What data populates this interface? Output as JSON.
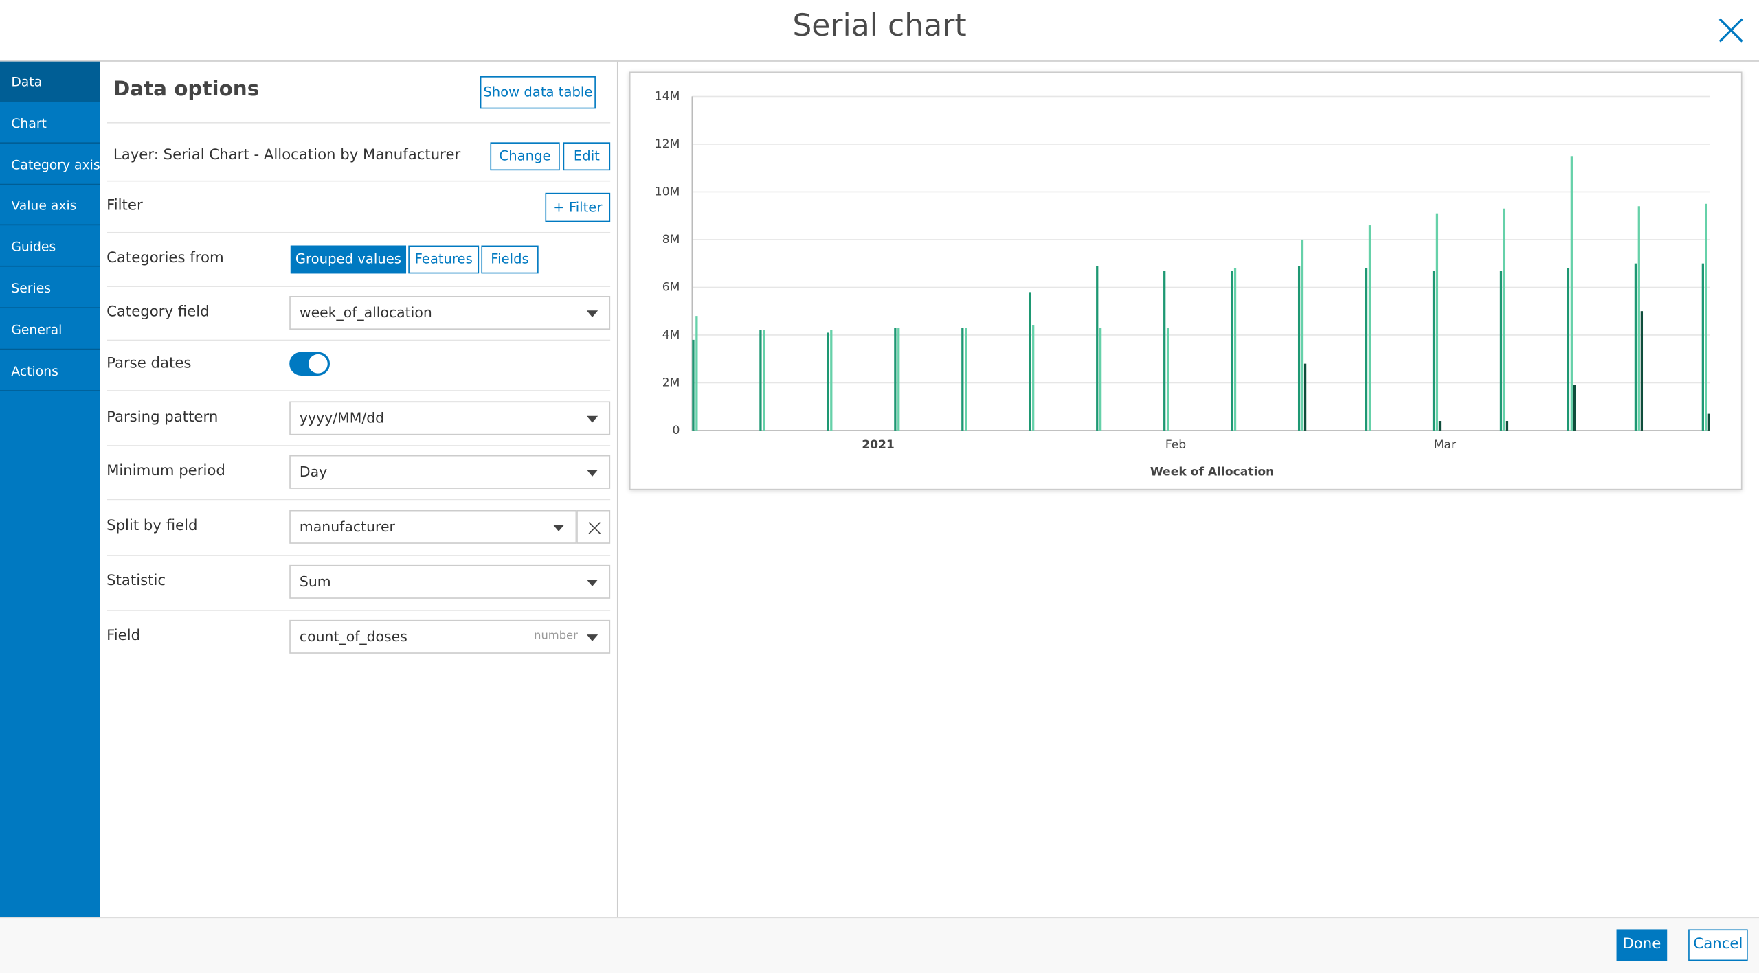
{
  "header": {
    "title": "Serial chart"
  },
  "nav": [
    "Data",
    "Chart",
    "Category axis",
    "Value axis",
    "Guides",
    "Series",
    "General",
    "Actions"
  ],
  "panel": {
    "title": "Data options",
    "show_data_table": "Show data table",
    "layer": "Layer: Serial Chart - Allocation by Manufacturer",
    "change": "Change",
    "edit": "Edit",
    "filter_label": "Filter",
    "filter_button": "+ Filter",
    "categories_from_label": "Categories from",
    "categories_from_options": [
      "Grouped values",
      "Features",
      "Fields"
    ],
    "category_field_label": "Category field",
    "category_field_value": "week_of_allocation",
    "parse_dates_label": "Parse dates",
    "parse_dates": true,
    "parsing_pattern_label": "Parsing pattern",
    "parsing_pattern_value": "yyyy/MM/dd",
    "minimum_period_label": "Minimum period",
    "minimum_period_value": "Day",
    "split_by_label": "Split by field",
    "split_by_value": "manufacturer",
    "statistic_label": "Statistic",
    "statistic_value": "Sum",
    "field_label": "Field",
    "field_value": "count_of_doses",
    "field_type": "number"
  },
  "chart_data": {
    "type": "bar",
    "x_label": "Week of Allocation",
    "categories": [
      null,
      null,
      null,
      null,
      null,
      null,
      null,
      null,
      null,
      null,
      null,
      null,
      null,
      null,
      null,
      null
    ],
    "x_tick_labels": [
      "2021",
      "Feb",
      "Mar"
    ],
    "series": [
      {
        "color": "#1e9873",
        "values": [
          3800000,
          4200000,
          4100000,
          4300000,
          4300000,
          5800000,
          6900000,
          6700000,
          6700000,
          6900000,
          6800000,
          6700000,
          6700000,
          6800000,
          7000000,
          7000000
        ]
      },
      {
        "color": "#66d1a9",
        "values": [
          4800000,
          4200000,
          4200000,
          4300000,
          4300000,
          4400000,
          4300000,
          4300000,
          6800000,
          8000000,
          8600000,
          9100000,
          9300000,
          11500000,
          9400000,
          9500000
        ]
      },
      {
        "color": "#0f4d3b",
        "values": [
          null,
          null,
          null,
          null,
          null,
          null,
          null,
          null,
          null,
          2800000,
          null,
          400000,
          400000,
          1900000,
          5000000,
          700000
        ]
      }
    ],
    "ylim": [
      0,
      14000000
    ],
    "yticks": [
      0,
      {
        "value": 2000000,
        "label": "2M"
      },
      {
        "value": 4000000,
        "label": "4M"
      },
      {
        "value": 6000000,
        "label": "6M"
      },
      {
        "value": 8000000,
        "label": "8M"
      },
      {
        "value": 10000000,
        "label": "10M"
      },
      {
        "value": 12000000,
        "label": "12M"
      },
      {
        "value": 14000000,
        "label": "14M"
      }
    ],
    "grid": true
  },
  "footer": {
    "done": "Done",
    "cancel": "Cancel"
  }
}
